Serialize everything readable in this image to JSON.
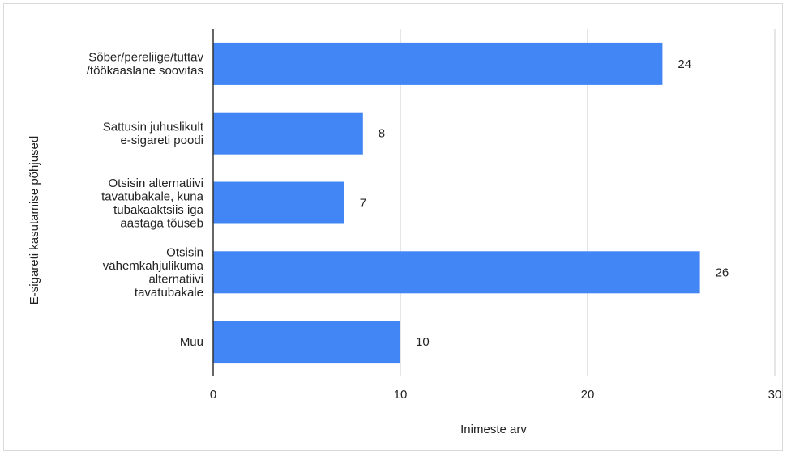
{
  "chart_data": {
    "type": "bar",
    "orientation": "horizontal",
    "categories": [
      [
        "Sõber/pereliige/tuttav",
        "/töökaaslane soovitas"
      ],
      [
        "Sattusin juhuslikult",
        "e-sigareti poodi"
      ],
      [
        "Otsisin alternatiivi",
        "tavatubakale, kuna",
        "tubakaaktsiis iga",
        "aastaga tõuseb"
      ],
      [
        "Otsisin",
        "vähemkahjulikuma",
        "alternatiivi",
        "tavatubakale"
      ],
      [
        "Muu"
      ]
    ],
    "values": [
      24,
      8,
      7,
      26,
      10
    ],
    "data_labels": [
      "24",
      "8",
      "7",
      "26",
      "10"
    ],
    "xlabel": "Inimeste arv",
    "ylabel": "E-sigareti kasutamise põhjused",
    "xlim": [
      0,
      30
    ],
    "xticks": [
      0,
      10,
      20,
      30
    ],
    "xtick_labels": [
      "0",
      "10",
      "20",
      "30"
    ],
    "grid": true,
    "bar_color": "#4285f4"
  }
}
